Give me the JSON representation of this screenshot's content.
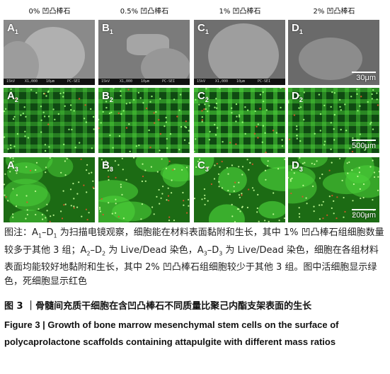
{
  "columns": [
    "0% 凹凸棒石",
    "0.5% 凹凸棒石",
    "1% 凹凸棒石",
    "2% 凹凸棒石"
  ],
  "rows": [
    {
      "letters": [
        "A",
        "B",
        "C",
        "D"
      ],
      "sub": "1",
      "type": "SEM",
      "scale": "30μm"
    },
    {
      "letters": [
        "A",
        "B",
        "C",
        "D"
      ],
      "sub": "2",
      "type": "fluorescence",
      "scale": "500μm"
    },
    {
      "letters": [
        "A",
        "B",
        "C",
        "D"
      ],
      "sub": "3",
      "type": "fluorescence",
      "scale": "200μm"
    }
  ],
  "caption": {
    "p1": "图注：A",
    "p2": "1",
    "p3": "–D",
    "p4": "1",
    "p5": " 为扫描电镜观察，细胞能在材料表面黏附和生长，其中 1% 凹凸棒石组细胞数量较多于其他 3 组；A",
    "p6": "2",
    "p7": "–D",
    "p8": "2",
    "p9": " 为 Live/Dead 染色，A",
    "p10": "3",
    "p11": "–D",
    "p12": "3",
    "p13": " 为 Live/Dead 染色，细胞在各组材料表面均能较好地黏附和生长，其中 2% 凹凸棒石组细胞较少于其他 3 组。图中活细胞显示绿色，死细胞显示红色"
  },
  "title_cn": "图 3 ｜骨髓间充质干细胞在含凹凸棒石不同质量比聚己内酯支架表面的生长",
  "title_en": "Figure 3 | Growth of bone marrow mesenchymal stem cells on the surface of polycaprolactone scaffolds containing attapulgite with different mass ratios",
  "sem_strip": [
    "15kV",
    "X1,000",
    "10μm",
    "PC-SEI"
  ],
  "colors": {
    "live": "#4cd23a",
    "dead": "#e0542a",
    "sem": "#8a8a8a"
  }
}
